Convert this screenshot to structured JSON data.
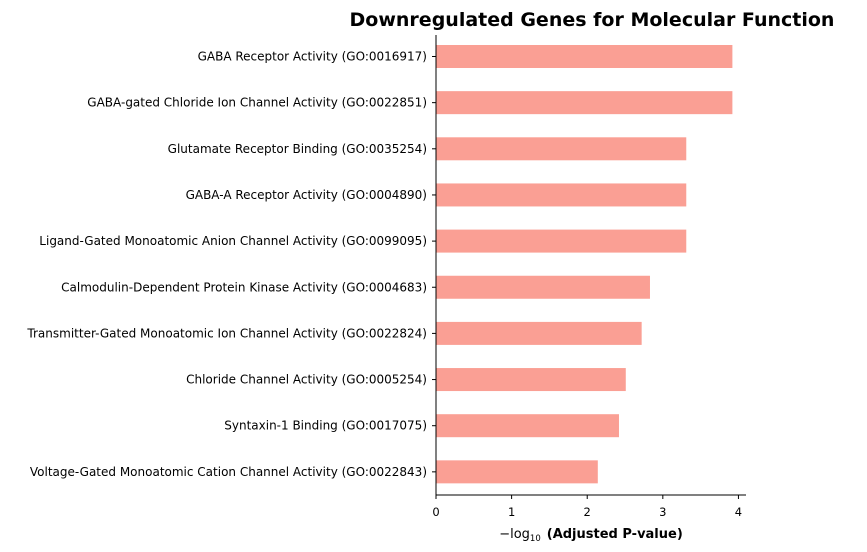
{
  "chart_data": {
    "type": "bar",
    "orientation": "horizontal",
    "title": "Downregulated Genes for Molecular Function",
    "xlabel": {
      "prefix": "−log",
      "subscript": "10",
      "suffix": "(Adjusted P-value)"
    },
    "ylabel": "",
    "xlim": [
      0,
      4.1
    ],
    "xticks": [
      "0",
      "1",
      "2",
      "3",
      "4"
    ],
    "bar_color": "#fa9f94",
    "grid": false,
    "categories": [
      "GABA Receptor Activity (GO:0016917)",
      "GABA-gated Chloride Ion Channel Activity (GO:0022851)",
      "Glutamate Receptor Binding (GO:0035254)",
      "GABA-A Receptor Activity (GO:0004890)",
      "Ligand-Gated Monoatomic Anion Channel Activity (GO:0099095)",
      "Calmodulin-Dependent Protein Kinase Activity (GO:0004683)",
      "Transmitter-Gated Monoatomic Ion Channel Activity (GO:0022824)",
      "Chloride Channel Activity (GO:0005254)",
      "Syntaxin-1 Binding (GO:0017075)",
      "Voltage-Gated Monoatomic Cation Channel Activity (GO:0022843)"
    ],
    "values": [
      3.92,
      3.92,
      3.31,
      3.31,
      3.31,
      2.83,
      2.72,
      2.51,
      2.42,
      2.14
    ]
  }
}
